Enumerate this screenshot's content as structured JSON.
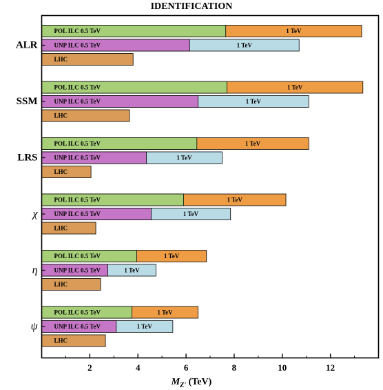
{
  "chart_data": {
    "type": "bar",
    "title": "IDENTIFICATION",
    "xlabel": "M_{Z'} (TeV)",
    "xlabel_parts": {
      "symbol": "M",
      "subscript": "Z'",
      "unit": "(TeV)"
    },
    "xlim": [
      0,
      14
    ],
    "xticks": [
      2,
      4,
      6,
      8,
      10,
      12
    ],
    "grid": false,
    "colors": {
      "pol_05": "#a6cf78",
      "pol_1": "#ef9d45",
      "unp_05": "#c676c6",
      "unp_1": "#b9dbe6",
      "lhc": "#d99b57"
    },
    "groups": [
      {
        "name": "ALR",
        "italic": false,
        "pol": {
          "label_05": "POL ILC 0.5 TeV",
          "v05": 7.65,
          "label_1": "1 TeV",
          "v1": 13.3
        },
        "unp": {
          "label_05": "UNP ILC 0.5 TeV",
          "v05": 6.15,
          "label_1": "1 TeV",
          "v1": 10.7
        },
        "lhc": {
          "label": "LHC",
          "v": 3.8
        }
      },
      {
        "name": "SSM",
        "italic": false,
        "pol": {
          "label_05": "POL ILC 0.5 TeV",
          "v05": 7.7,
          "label_1": "1 TeV",
          "v1": 13.35
        },
        "unp": {
          "label_05": "UNP ILC 0.5 TeV",
          "v05": 6.5,
          "label_1": "1 TeV",
          "v1": 11.1
        },
        "lhc": {
          "label": "LHC",
          "v": 3.65
        }
      },
      {
        "name": "LRS",
        "italic": false,
        "pol": {
          "label_05": "POL ILC 0.5 TeV",
          "v05": 6.45,
          "label_1": "1 TeV",
          "v1": 11.1
        },
        "unp": {
          "label_05": "UNP ILC 0.5 TeV",
          "v05": 4.35,
          "label_1": "1 TeV",
          "v1": 7.5
        },
        "lhc": {
          "label": "LHC",
          "v": 2.05
        }
      },
      {
        "name": "χ",
        "italic": true,
        "pol": {
          "label_05": "POL ILC 0.5 TeV",
          "v05": 5.9,
          "label_1": "1 TeV",
          "v1": 10.15
        },
        "unp": {
          "label_05": "UNP ILC 0.5 TeV",
          "v05": 4.55,
          "label_1": "1 TeV",
          "v1": 7.85
        },
        "lhc": {
          "label": "LHC",
          "v": 2.25
        }
      },
      {
        "name": "η",
        "italic": true,
        "pol": {
          "label_05": "POL ILC 0.5 TeV",
          "v05": 3.95,
          "label_1": "1 TeV",
          "v1": 6.85
        },
        "unp": {
          "label_05": "UNP ILC 0.5 TeV",
          "v05": 2.75,
          "label_1": "1 TeV",
          "v1": 4.75
        },
        "lhc": {
          "label": "LHC",
          "v": 2.45
        }
      },
      {
        "name": "ψ",
        "italic": true,
        "pol": {
          "label_05": "POL ILC 0.5 TeV",
          "v05": 3.75,
          "label_1": "1 TeV",
          "v1": 6.5
        },
        "unp": {
          "label_05": "UNP ILC 0.5 TeV",
          "v05": 3.1,
          "label_1": "1 TeV",
          "v1": 5.45
        },
        "lhc": {
          "label": "LHC",
          "v": 2.65
        }
      }
    ]
  }
}
